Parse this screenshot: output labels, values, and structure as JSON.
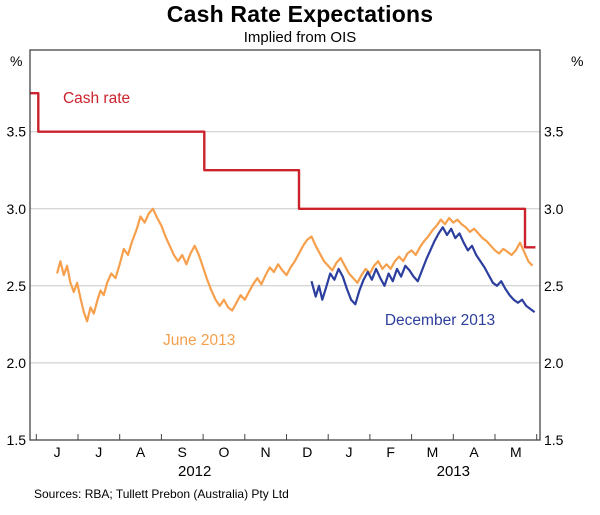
{
  "header": {
    "title": "Cash Rate Expectations",
    "subtitle": "Implied from OIS"
  },
  "axes": {
    "unit_left": "%",
    "unit_right": "%"
  },
  "footer": {
    "sources": "Sources: RBA; Tullett Prebon (Australia) Pty Ltd"
  },
  "chart_data": {
    "type": "line",
    "title": "Cash Rate Expectations",
    "subtitle": "Implied from OIS",
    "y_unit": "%",
    "ylim": [
      1.5,
      4.03
    ],
    "xlim": [
      -0.15,
      12.08
    ],
    "yticks": [
      3.5,
      3.0,
      2.5,
      2.0,
      1.5
    ],
    "gridlines": [
      2.0,
      2.5,
      3.0,
      3.5
    ],
    "month_tick_labels": [
      "J",
      "J",
      "A",
      "S",
      "O",
      "N",
      "D",
      "J",
      "F",
      "M",
      "A",
      "M"
    ],
    "year_labels": [
      {
        "label": "2012",
        "x": 3.8
      },
      {
        "label": "2013",
        "x": 10.0
      }
    ],
    "colors": {
      "grid": "#c8c8c8",
      "frame": "#444444"
    },
    "series": [
      {
        "name": "June 2013",
        "color": "#f6a04d",
        "line_width": 2.2,
        "points": [
          [
            0.5,
            2.58
          ],
          [
            0.58,
            2.66
          ],
          [
            0.66,
            2.57
          ],
          [
            0.74,
            2.63
          ],
          [
            0.82,
            2.52
          ],
          [
            0.9,
            2.46
          ],
          [
            0.98,
            2.52
          ],
          [
            1.06,
            2.42
          ],
          [
            1.14,
            2.33
          ],
          [
            1.22,
            2.27
          ],
          [
            1.3,
            2.36
          ],
          [
            1.38,
            2.32
          ],
          [
            1.46,
            2.4
          ],
          [
            1.54,
            2.47
          ],
          [
            1.62,
            2.44
          ],
          [
            1.7,
            2.52
          ],
          [
            1.8,
            2.58
          ],
          [
            1.9,
            2.55
          ],
          [
            2.0,
            2.64
          ],
          [
            2.1,
            2.74
          ],
          [
            2.2,
            2.7
          ],
          [
            2.3,
            2.79
          ],
          [
            2.4,
            2.86
          ],
          [
            2.5,
            2.95
          ],
          [
            2.6,
            2.91
          ],
          [
            2.7,
            2.97
          ],
          [
            2.8,
            3.0
          ],
          [
            2.9,
            2.94
          ],
          [
            3.0,
            2.89
          ],
          [
            3.1,
            2.82
          ],
          [
            3.2,
            2.76
          ],
          [
            3.3,
            2.7
          ],
          [
            3.4,
            2.66
          ],
          [
            3.5,
            2.7
          ],
          [
            3.6,
            2.64
          ],
          [
            3.7,
            2.71
          ],
          [
            3.8,
            2.76
          ],
          [
            3.9,
            2.7
          ],
          [
            4.0,
            2.62
          ],
          [
            4.1,
            2.54
          ],
          [
            4.2,
            2.47
          ],
          [
            4.3,
            2.41
          ],
          [
            4.4,
            2.37
          ],
          [
            4.5,
            2.41
          ],
          [
            4.6,
            2.36
          ],
          [
            4.7,
            2.34
          ],
          [
            4.8,
            2.39
          ],
          [
            4.9,
            2.44
          ],
          [
            5.0,
            2.41
          ],
          [
            5.1,
            2.46
          ],
          [
            5.2,
            2.51
          ],
          [
            5.3,
            2.55
          ],
          [
            5.4,
            2.51
          ],
          [
            5.5,
            2.57
          ],
          [
            5.6,
            2.62
          ],
          [
            5.7,
            2.59
          ],
          [
            5.8,
            2.64
          ],
          [
            5.9,
            2.6
          ],
          [
            6.0,
            2.57
          ],
          [
            6.1,
            2.62
          ],
          [
            6.2,
            2.66
          ],
          [
            6.3,
            2.71
          ],
          [
            6.4,
            2.76
          ],
          [
            6.5,
            2.8
          ],
          [
            6.6,
            2.82
          ],
          [
            6.7,
            2.76
          ],
          [
            6.8,
            2.71
          ],
          [
            6.9,
            2.66
          ],
          [
            7.0,
            2.63
          ],
          [
            7.1,
            2.6
          ],
          [
            7.2,
            2.65
          ],
          [
            7.3,
            2.68
          ],
          [
            7.4,
            2.63
          ],
          [
            7.5,
            2.58
          ],
          [
            7.6,
            2.55
          ],
          [
            7.7,
            2.52
          ],
          [
            7.8,
            2.57
          ],
          [
            7.9,
            2.61
          ],
          [
            8.0,
            2.58
          ],
          [
            8.1,
            2.63
          ],
          [
            8.2,
            2.66
          ],
          [
            8.3,
            2.61
          ],
          [
            8.4,
            2.64
          ],
          [
            8.5,
            2.61
          ],
          [
            8.6,
            2.66
          ],
          [
            8.7,
            2.69
          ],
          [
            8.8,
            2.66
          ],
          [
            8.9,
            2.71
          ],
          [
            9.0,
            2.73
          ],
          [
            9.1,
            2.7
          ],
          [
            9.2,
            2.75
          ],
          [
            9.3,
            2.79
          ],
          [
            9.4,
            2.82
          ],
          [
            9.5,
            2.86
          ],
          [
            9.6,
            2.89
          ],
          [
            9.7,
            2.93
          ],
          [
            9.8,
            2.9
          ],
          [
            9.9,
            2.94
          ],
          [
            10.0,
            2.91
          ],
          [
            10.1,
            2.93
          ],
          [
            10.2,
            2.9
          ],
          [
            10.3,
            2.88
          ],
          [
            10.4,
            2.85
          ],
          [
            10.5,
            2.87
          ],
          [
            10.6,
            2.84
          ],
          [
            10.7,
            2.81
          ],
          [
            10.8,
            2.79
          ],
          [
            10.9,
            2.76
          ],
          [
            11.0,
            2.73
          ],
          [
            11.1,
            2.71
          ],
          [
            11.2,
            2.74
          ],
          [
            11.3,
            2.72
          ],
          [
            11.4,
            2.7
          ],
          [
            11.5,
            2.73
          ],
          [
            11.6,
            2.78
          ],
          [
            11.7,
            2.72
          ],
          [
            11.8,
            2.66
          ],
          [
            11.9,
            2.63
          ]
        ]
      },
      {
        "name": "December 2013",
        "color": "#2c3e9e",
        "line_width": 2.2,
        "points": [
          [
            6.6,
            2.53
          ],
          [
            6.7,
            2.43
          ],
          [
            6.78,
            2.5
          ],
          [
            6.86,
            2.41
          ],
          [
            6.95,
            2.49
          ],
          [
            7.05,
            2.58
          ],
          [
            7.15,
            2.54
          ],
          [
            7.25,
            2.61
          ],
          [
            7.35,
            2.56
          ],
          [
            7.45,
            2.48
          ],
          [
            7.55,
            2.41
          ],
          [
            7.65,
            2.38
          ],
          [
            7.75,
            2.47
          ],
          [
            7.85,
            2.54
          ],
          [
            7.95,
            2.59
          ],
          [
            8.05,
            2.54
          ],
          [
            8.15,
            2.61
          ],
          [
            8.25,
            2.55
          ],
          [
            8.35,
            2.5
          ],
          [
            8.45,
            2.58
          ],
          [
            8.55,
            2.53
          ],
          [
            8.65,
            2.61
          ],
          [
            8.75,
            2.56
          ],
          [
            8.85,
            2.63
          ],
          [
            8.95,
            2.6
          ],
          [
            9.05,
            2.56
          ],
          [
            9.15,
            2.53
          ],
          [
            9.25,
            2.6
          ],
          [
            9.35,
            2.67
          ],
          [
            9.45,
            2.73
          ],
          [
            9.55,
            2.79
          ],
          [
            9.65,
            2.84
          ],
          [
            9.75,
            2.88
          ],
          [
            9.85,
            2.83
          ],
          [
            9.95,
            2.87
          ],
          [
            10.05,
            2.81
          ],
          [
            10.15,
            2.84
          ],
          [
            10.25,
            2.78
          ],
          [
            10.35,
            2.73
          ],
          [
            10.45,
            2.76
          ],
          [
            10.55,
            2.7
          ],
          [
            10.65,
            2.66
          ],
          [
            10.75,
            2.62
          ],
          [
            10.85,
            2.57
          ],
          [
            10.95,
            2.52
          ],
          [
            11.05,
            2.5
          ],
          [
            11.15,
            2.53
          ],
          [
            11.25,
            2.48
          ],
          [
            11.35,
            2.44
          ],
          [
            11.45,
            2.41
          ],
          [
            11.55,
            2.39
          ],
          [
            11.65,
            2.41
          ],
          [
            11.75,
            2.37
          ],
          [
            11.85,
            2.35
          ],
          [
            11.95,
            2.33
          ]
        ]
      },
      {
        "name": "Cash rate",
        "color": "#cb222c",
        "line_width": 2.4,
        "step": true,
        "points": [
          [
            -0.15,
            3.75
          ],
          [
            0.05,
            3.75
          ],
          [
            0.05,
            3.5
          ],
          [
            4.03,
            3.5
          ],
          [
            4.03,
            3.25
          ],
          [
            6.3,
            3.25
          ],
          [
            6.3,
            3.0
          ],
          [
            11.72,
            3.0
          ],
          [
            11.72,
            2.75
          ],
          [
            11.97,
            2.75
          ]
        ]
      }
    ],
    "annotations": [
      {
        "text": "Cash rate",
        "x": 0.64,
        "y": 3.71,
        "color": "#cb222c"
      },
      {
        "text": "June 2013",
        "x": 3.04,
        "y": 2.14,
        "color": "#f6a04d"
      },
      {
        "text": "December 2013",
        "x": 8.36,
        "y": 2.27,
        "color": "#2c3e9e"
      }
    ]
  }
}
